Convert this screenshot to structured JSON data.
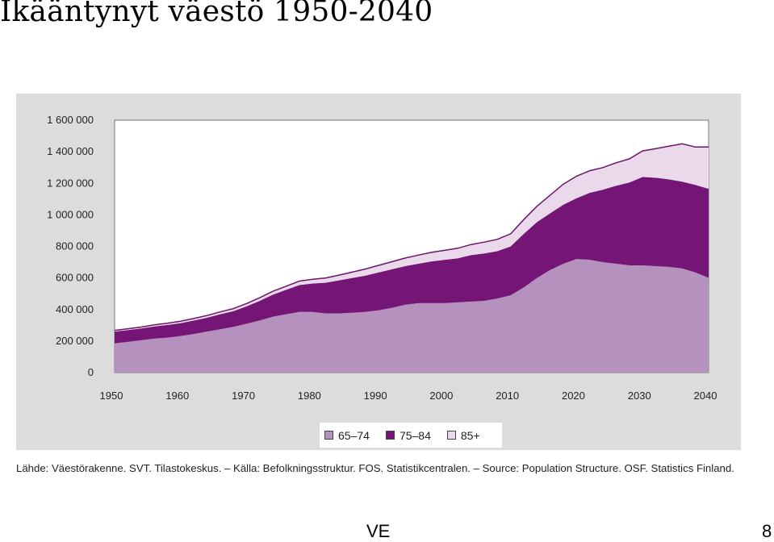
{
  "slide": {
    "title": "Ikääntynyt väestö 1950-2040",
    "footer_left": "VE",
    "footer_right": "8"
  },
  "source": "Lähde: Väestörakenne. SVT. Tilastokeskus. – Källa: Befolkningsstruktur. FOS. Statistikcentralen. – Source: Population Structure. OSF. Statistics Finland.",
  "colors": {
    "panel_bg": "#dcdcdc",
    "plot_bg": "#ffffff",
    "age_65_74": "#b592bd",
    "age_75_84": "#751575",
    "age_85_plus": "#ead9eb",
    "outline": "#6c156a"
  },
  "chart_data": {
    "type": "area",
    "stacked": true,
    "title": "",
    "xlabel": "",
    "ylabel": "",
    "xlim": [
      1950,
      2040
    ],
    "ylim": [
      0,
      1600000
    ],
    "x_ticks": [
      "1950",
      "1960",
      "1970",
      "1980",
      "1990",
      "2000",
      "2010",
      "2020",
      "2030",
      "2040"
    ],
    "y_ticks": [
      "0",
      "200 000",
      "400 000",
      "600 000",
      "800 000",
      "1 000 000",
      "1 200 000",
      "1 400 000",
      "1 600 000"
    ],
    "y_tick_values": [
      0,
      200000,
      400000,
      600000,
      800000,
      1000000,
      1200000,
      1400000,
      1600000
    ],
    "grid": false,
    "legend_position": "bottom-center",
    "x": [
      1950,
      1952,
      1954,
      1956,
      1958,
      1960,
      1962,
      1964,
      1966,
      1968,
      1970,
      1972,
      1974,
      1976,
      1978,
      1980,
      1982,
      1984,
      1986,
      1988,
      1990,
      1992,
      1994,
      1996,
      1998,
      2000,
      2002,
      2004,
      2006,
      2008,
      2010,
      2012,
      2014,
      2016,
      2018,
      2020,
      2022,
      2024,
      2026,
      2028,
      2030,
      2032,
      2034,
      2036,
      2038,
      2040
    ],
    "series": [
      {
        "name": "65–74",
        "color": "#b592bd",
        "values": [
          185000,
          195000,
          205000,
          215000,
          222000,
          232000,
          245000,
          260000,
          275000,
          290000,
          310000,
          330000,
          355000,
          370000,
          385000,
          385000,
          375000,
          375000,
          380000,
          385000,
          395000,
          410000,
          430000,
          440000,
          440000,
          440000,
          445000,
          450000,
          455000,
          470000,
          490000,
          540000,
          600000,
          650000,
          690000,
          720000,
          715000,
          700000,
          690000,
          680000,
          680000,
          675000,
          670000,
          660000,
          635000,
          600000
        ]
      },
      {
        "name": "75–84",
        "color": "#751575",
        "values": [
          75000,
          75000,
          75000,
          78000,
          80000,
          82000,
          85000,
          88000,
          95000,
          100000,
          110000,
          125000,
          140000,
          155000,
          170000,
          180000,
          195000,
          210000,
          220000,
          230000,
          240000,
          245000,
          245000,
          250000,
          265000,
          275000,
          280000,
          295000,
          300000,
          300000,
          310000,
          340000,
          355000,
          360000,
          375000,
          385000,
          425000,
          460000,
          495000,
          525000,
          560000,
          560000,
          555000,
          550000,
          555000,
          565000
        ]
      },
      {
        "name": "85+",
        "color": "#ead9eb",
        "values": [
          8000,
          8000,
          9000,
          10000,
          11000,
          12000,
          13000,
          14000,
          15000,
          16000,
          18000,
          20000,
          21000,
          23000,
          25000,
          27000,
          30000,
          33000,
          37000,
          42000,
          45000,
          48000,
          51000,
          55000,
          57000,
          60000,
          63000,
          67000,
          72000,
          75000,
          80000,
          90000,
          100000,
          115000,
          130000,
          140000,
          140000,
          140000,
          145000,
          150000,
          165000,
          185000,
          210000,
          240000,
          240000,
          265000
        ]
      }
    ]
  }
}
